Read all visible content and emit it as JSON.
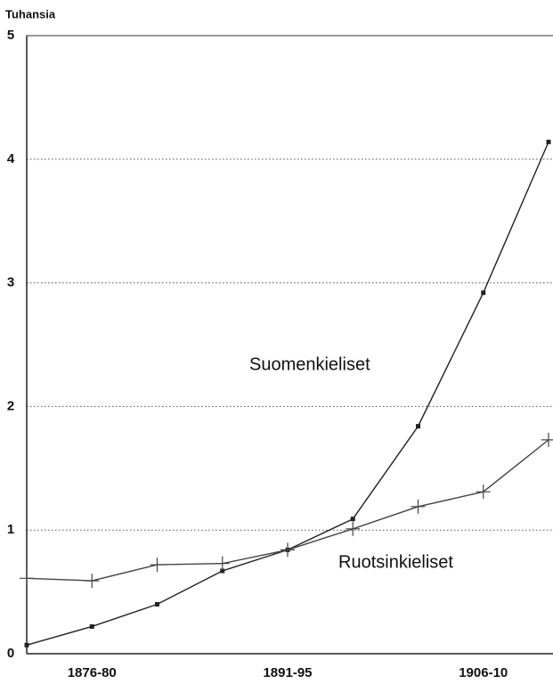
{
  "chart_data": {
    "type": "line",
    "y_label": "Tuhansia",
    "categories": [
      null,
      "1876-80",
      null,
      null,
      "1891-95",
      null,
      null,
      "1906-10",
      null
    ],
    "series": [
      {
        "name": "Suomenkieliset",
        "color": "#222222",
        "marker": "square",
        "values": [
          0.07,
          0.22,
          0.4,
          0.67,
          0.84,
          1.09,
          1.84,
          2.92,
          4.14
        ]
      },
      {
        "name": "Ruotsinkieliset",
        "color": "#444444",
        "marker": "plus",
        "values": [
          0.61,
          0.59,
          0.72,
          0.73,
          0.84,
          1.01,
          1.19,
          1.31,
          1.73
        ]
      }
    ],
    "ylim": [
      0,
      5
    ],
    "yticks": [
      0,
      1,
      2,
      3,
      4,
      5
    ],
    "grid": true
  }
}
